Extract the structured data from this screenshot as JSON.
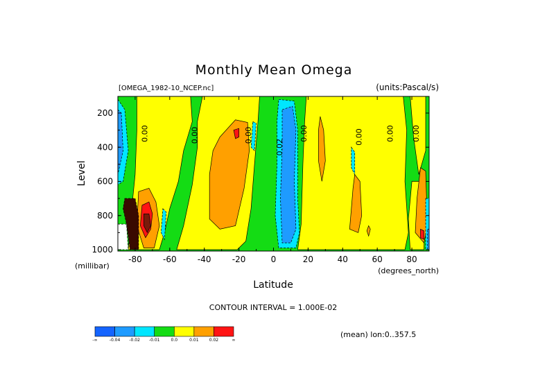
{
  "chart_data": {
    "type": "heatmap",
    "title": "Monthly Mean Omega",
    "file_label": "[OMEGA_1982-10_NCEP.nc]",
    "units_label": "(units:Pascal/s)",
    "xlabel": "Latitude",
    "ylabel": "Level",
    "xunits": "(degrees_north)",
    "yunits": "(millibar)",
    "xlim": [
      -90,
      90
    ],
    "ylim": [
      1000,
      100
    ],
    "x_ticks": [
      {
        "value": -80,
        "label": "-80"
      },
      {
        "value": -60,
        "label": "-60"
      },
      {
        "value": -40,
        "label": "-40"
      },
      {
        "value": -20,
        "label": "-20"
      },
      {
        "value": 0,
        "label": "0"
      },
      {
        "value": 20,
        "label": "20"
      },
      {
        "value": 40,
        "label": "40"
      },
      {
        "value": 60,
        "label": "60"
      },
      {
        "value": 80,
        "label": "80"
      }
    ],
    "y_ticks": [
      {
        "value": 200,
        "label": "200"
      },
      {
        "value": 400,
        "label": "400"
      },
      {
        "value": 600,
        "label": "600"
      },
      {
        "value": 800,
        "label": "800"
      },
      {
        "value": 1000,
        "label": "1000"
      }
    ],
    "contour_interval_text": "CONTOUR INTERVAL = 1.000E-02",
    "mean_text": "(mean) lon:0..357.5",
    "contour_labels": [
      {
        "text": "0.00",
        "lat": -73,
        "level": 320
      },
      {
        "text": "0.00",
        "lat": -44,
        "level": 330
      },
      {
        "text": "0.00",
        "lat": -13,
        "level": 330
      },
      {
        "text": "0.02",
        "lat": 5,
        "level": 400
      },
      {
        "text": "0.00",
        "lat": 19,
        "level": 320
      },
      {
        "text": "0.00",
        "lat": 51,
        "level": 340
      },
      {
        "text": "0.00",
        "lat": 69,
        "level": 320
      },
      {
        "text": "0.00",
        "lat": 84,
        "level": 320
      }
    ],
    "colorbar": {
      "labels": [
        "-∞",
        "-0.04",
        "-0.02",
        "-0.01",
        "0.0",
        "0.01",
        "0.02",
        "∞"
      ],
      "colors": [
        "#1464ff",
        "#1e9bff",
        "#00e6ff",
        "#14dc14",
        "#ffff00",
        "#ffa000",
        "#ff1414"
      ]
    },
    "regions": [
      {
        "name": "yellow-sh-subpolar",
        "class": 0.005,
        "color": "#ffff00",
        "pts": [
          [
            -79,
            100
          ],
          [
            -48,
            100
          ],
          [
            -47,
            250
          ],
          [
            -52,
            420
          ],
          [
            -55,
            600
          ],
          [
            -60,
            760
          ],
          [
            -63,
            900
          ],
          [
            -66,
            1000
          ],
          [
            -84,
            1000
          ],
          [
            -82,
            760
          ],
          [
            -80,
            560
          ],
          [
            -79,
            300
          ]
        ]
      },
      {
        "name": "yellow-sh-subtropics",
        "class": 0.005,
        "color": "#ffff00",
        "pts": [
          [
            -41,
            100
          ],
          [
            -8,
            100
          ],
          [
            -9,
            250
          ],
          [
            -11,
            500
          ],
          [
            -13,
            760
          ],
          [
            -16,
            950
          ],
          [
            -21,
            1000
          ],
          [
            -56,
            1000
          ],
          [
            -52,
            860
          ],
          [
            -47,
            620
          ],
          [
            -44,
            400
          ],
          [
            -44,
            250
          ]
        ]
      },
      {
        "name": "yellow-nh",
        "class": 0.005,
        "color": "#ffff00",
        "pts": [
          [
            19,
            100
          ],
          [
            75,
            100
          ],
          [
            77,
            300
          ],
          [
            76,
            600
          ],
          [
            78,
            900
          ],
          [
            76,
            1000
          ],
          [
            14,
            1000
          ],
          [
            16,
            850
          ],
          [
            17,
            500
          ],
          [
            18,
            250
          ]
        ]
      },
      {
        "name": "yellow-nh-polar",
        "class": 0.005,
        "color": "#ffff00",
        "pts": [
          [
            79,
            100
          ],
          [
            88,
            100
          ],
          [
            88,
            420
          ],
          [
            84,
            560
          ],
          [
            81,
            340
          ]
        ]
      },
      {
        "name": "yellow-nh-polar-lower",
        "class": 0.005,
        "color": "#ffff00",
        "pts": [
          [
            80,
            600
          ],
          [
            88,
            600
          ],
          [
            87,
            1000
          ],
          [
            79,
            1000
          ],
          [
            78,
            820
          ]
        ]
      },
      {
        "name": "orange-sh-subtropics",
        "class": 0.015,
        "color": "#ffa000",
        "pts": [
          [
            -31,
            340
          ],
          [
            -22,
            240
          ],
          [
            -15,
            255
          ],
          [
            -14,
            420
          ],
          [
            -17,
            640
          ],
          [
            -22,
            860
          ],
          [
            -31,
            880
          ],
          [
            -37,
            820
          ],
          [
            -37,
            560
          ],
          [
            -35,
            420
          ]
        ]
      },
      {
        "name": "orange-sh-polar",
        "class": 0.015,
        "color": "#ffa000",
        "pts": [
          [
            -78,
            660
          ],
          [
            -72,
            640
          ],
          [
            -68,
            720
          ],
          [
            -66,
            860
          ],
          [
            -69,
            990
          ],
          [
            -75,
            990
          ],
          [
            -79,
            860
          ]
        ]
      },
      {
        "name": "orange-nh-25",
        "class": 0.015,
        "color": "#ffa000",
        "pts": [
          [
            27,
            220
          ],
          [
            29,
            300
          ],
          [
            30,
            480
          ],
          [
            28,
            600
          ],
          [
            26,
            480
          ],
          [
            26,
            300
          ]
        ]
      },
      {
        "name": "orange-nh-45",
        "class": 0.015,
        "color": "#ffa000",
        "pts": [
          [
            47,
            560
          ],
          [
            50,
            600
          ],
          [
            51,
            800
          ],
          [
            49,
            900
          ],
          [
            44,
            880
          ],
          [
            45,
            760
          ],
          [
            46,
            640
          ]
        ]
      },
      {
        "name": "orange-nh-85",
        "class": 0.015,
        "color": "#ffa000",
        "pts": [
          [
            85,
            520
          ],
          [
            88,
            540
          ],
          [
            89,
            860
          ],
          [
            87,
            960
          ],
          [
            82,
            900
          ],
          [
            83,
            700
          ]
        ]
      },
      {
        "name": "orange-small-55",
        "class": 0.015,
        "color": "#ffa000",
        "pts": [
          [
            55,
            860
          ],
          [
            56,
            880
          ],
          [
            55,
            920
          ],
          [
            54,
            890
          ]
        ]
      },
      {
        "name": "red-sh-subtropics",
        "class": 0.025,
        "color": "#ff1414",
        "pts": [
          [
            -23,
            300
          ],
          [
            -20,
            290
          ],
          [
            -20,
            340
          ],
          [
            -22,
            350
          ]
        ]
      },
      {
        "name": "red-sh-polar",
        "class": 0.025,
        "color": "#ff1414",
        "pts": [
          [
            -76,
            740
          ],
          [
            -72,
            720
          ],
          [
            -70,
            790
          ],
          [
            -71,
            880
          ],
          [
            -74,
            930
          ],
          [
            -77,
            860
          ]
        ]
      },
      {
        "name": "red-nh-88",
        "class": 0.025,
        "color": "#ff1414",
        "pts": [
          [
            85,
            880
          ],
          [
            87,
            890
          ],
          [
            87,
            940
          ],
          [
            85,
            930
          ]
        ]
      },
      {
        "name": "dark-sh-polar",
        "class": 0.04,
        "color": "#7a1a0a",
        "pts": [
          [
            -75,
            790
          ],
          [
            -72,
            790
          ],
          [
            -71,
            860
          ],
          [
            -73,
            900
          ],
          [
            -75,
            860
          ]
        ]
      },
      {
        "name": "cyan-tropics",
        "class": -0.015,
        "color": "#00e6ff",
        "pts": [
          [
            3,
            120
          ],
          [
            12,
            130
          ],
          [
            14,
            300
          ],
          [
            14,
            700
          ],
          [
            15,
            900
          ],
          [
            13,
            990
          ],
          [
            3,
            990
          ],
          [
            1,
            800
          ],
          [
            2,
            500
          ],
          [
            2,
            250
          ]
        ]
      },
      {
        "name": "cyan-nh-38",
        "class": -0.015,
        "color": "#00e6ff",
        "pts": [
          [
            45,
            400
          ],
          [
            47,
            430
          ],
          [
            47,
            560
          ],
          [
            45,
            520
          ]
        ]
      },
      {
        "name": "cyan-sh-polar",
        "class": -0.015,
        "color": "#00e6ff",
        "pts": [
          [
            -90,
            120
          ],
          [
            -86,
            180
          ],
          [
            -84,
            420
          ],
          [
            -87,
            600
          ],
          [
            -90,
            620
          ]
        ]
      },
      {
        "name": "cyan-sh-60",
        "class": -0.015,
        "color": "#00e6ff",
        "pts": [
          [
            -64,
            760
          ],
          [
            -62,
            780
          ],
          [
            -63,
            940
          ],
          [
            -65,
            900
          ]
        ]
      },
      {
        "name": "cyan-sh-12",
        "class": -0.015,
        "color": "#00e6ff",
        "pts": [
          [
            -12,
            250
          ],
          [
            -10,
            260
          ],
          [
            -11,
            420
          ],
          [
            -13,
            400
          ]
        ]
      },
      {
        "name": "cyan-nh-polar",
        "class": -0.015,
        "color": "#00e6ff",
        "pts": [
          [
            88,
            700
          ],
          [
            90,
            700
          ],
          [
            90,
            1000
          ],
          [
            88,
            1000
          ]
        ]
      },
      {
        "name": "blue-tropics",
        "class": -0.03,
        "color": "#1e9bff",
        "pts": [
          [
            5,
            180
          ],
          [
            11,
            160
          ],
          [
            13,
            300
          ],
          [
            12,
            600
          ],
          [
            13,
            880
          ],
          [
            10,
            960
          ],
          [
            5,
            960
          ],
          [
            4,
            700
          ],
          [
            5,
            400
          ]
        ]
      },
      {
        "name": "blue-sh-polar",
        "class": -0.03,
        "color": "#1e9bff",
        "pts": [
          [
            -90,
            180
          ],
          [
            -88,
            200
          ],
          [
            -87,
            420
          ],
          [
            -90,
            560
          ]
        ]
      },
      {
        "name": "blue-nh-polar",
        "class": -0.03,
        "color": "#1e9bff",
        "pts": [
          [
            89,
            880
          ],
          [
            90,
            880
          ],
          [
            90,
            1000
          ],
          [
            89,
            1000
          ]
        ]
      },
      {
        "name": "white-antarctic",
        "class": -0.05,
        "color": "#ffffff",
        "pts": [
          [
            -90,
            850
          ],
          [
            -85,
            850
          ],
          [
            -84,
            1000
          ],
          [
            -90,
            1000
          ]
        ]
      },
      {
        "name": "dark-antarctic",
        "class": -0.05,
        "color": "#3a0a00",
        "pts": [
          [
            -86,
            700
          ],
          [
            -80,
            700
          ],
          [
            -78,
            800
          ],
          [
            -78,
            1000
          ],
          [
            -83,
            1000
          ],
          [
            -85,
            850
          ],
          [
            -87,
            760
          ]
        ]
      }
    ]
  }
}
